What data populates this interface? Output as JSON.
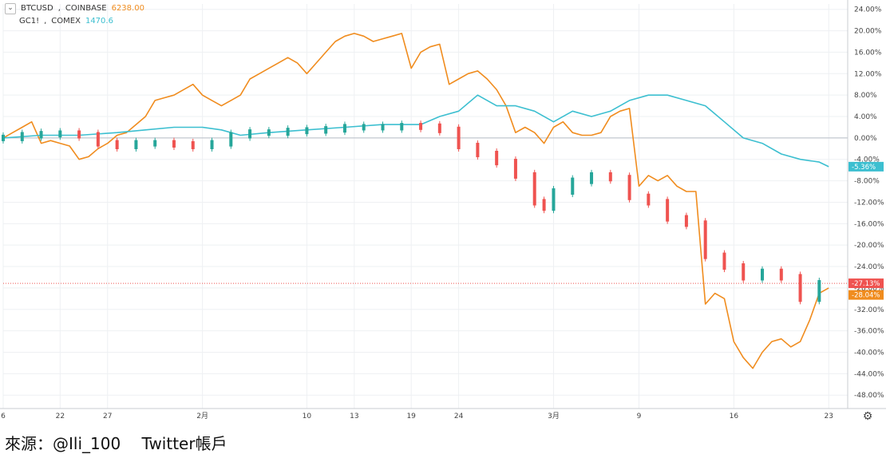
{
  "legend": [
    {
      "symbol": "BTCUSD",
      "exchange": "COINBASE",
      "value": "6238.00",
      "color": "#f08c1e"
    },
    {
      "symbol": "GC1!",
      "exchange": "COMEX",
      "value": "1470.6",
      "color": "#3cbfd0"
    }
  ],
  "badges": {
    "gold": "-5.36%",
    "candle": "-27.13%",
    "btc": "-28.04%"
  },
  "caption": "來源：@Ili_100 　Twitter帳戶",
  "icons": {
    "legend_toggle": "chevron-down-icon",
    "settings": "gear-icon"
  },
  "colors": {
    "btc": "#f08c1e",
    "gold": "#3cbfd0",
    "candle_up": "#26a69a",
    "candle_down": "#ef5350"
  },
  "chart_data": {
    "type": "line",
    "x_tick_labels": [
      "6",
      "22",
      "27",
      "2月",
      "10",
      "13",
      "19",
      "24",
      "3月",
      "9",
      "16",
      "23"
    ],
    "x_tick_positions": [
      0,
      6,
      11,
      21,
      32,
      37,
      43,
      48,
      58,
      67,
      77,
      87
    ],
    "y_ticks": [
      24,
      20,
      16,
      12,
      8,
      4,
      0,
      -4,
      -8,
      -12,
      -16,
      -20,
      -24,
      -28,
      -32,
      -36,
      -40,
      -44,
      -48
    ],
    "ylim": [
      -50.5,
      25
    ],
    "y_unit": "%",
    "grid": true,
    "series": [
      {
        "name": "BTCUSD",
        "kind": "line",
        "color": "#f08c1e",
        "points": [
          [
            0,
            0
          ],
          [
            1,
            1
          ],
          [
            2,
            2
          ],
          [
            3,
            3
          ],
          [
            4,
            -1
          ],
          [
            5,
            -0.5
          ],
          [
            6,
            -1
          ],
          [
            7,
            -1.5
          ],
          [
            8,
            -4
          ],
          [
            9,
            -3.5
          ],
          [
            10,
            -2
          ],
          [
            11,
            -1
          ],
          [
            12,
            0.5
          ],
          [
            13,
            1
          ],
          [
            14,
            2.5
          ],
          [
            15,
            4
          ],
          [
            16,
            7
          ],
          [
            17,
            7.5
          ],
          [
            18,
            8
          ],
          [
            19,
            9
          ],
          [
            20,
            10
          ],
          [
            21,
            8
          ],
          [
            22,
            7
          ],
          [
            23,
            6
          ],
          [
            24,
            7
          ],
          [
            25,
            8
          ],
          [
            26,
            11
          ],
          [
            27,
            12
          ],
          [
            28,
            13
          ],
          [
            29,
            14
          ],
          [
            30,
            15
          ],
          [
            31,
            14
          ],
          [
            32,
            12
          ],
          [
            33,
            14
          ],
          [
            34,
            16
          ],
          [
            35,
            18
          ],
          [
            36,
            19
          ],
          [
            37,
            19.5
          ],
          [
            38,
            19
          ],
          [
            39,
            18
          ],
          [
            40,
            18.5
          ],
          [
            41,
            19
          ],
          [
            42,
            19.5
          ],
          [
            43,
            13
          ],
          [
            44,
            16
          ],
          [
            45,
            17
          ],
          [
            46,
            17.5
          ],
          [
            47,
            10
          ],
          [
            48,
            11
          ],
          [
            49,
            12
          ],
          [
            50,
            12.5
          ],
          [
            51,
            11
          ],
          [
            52,
            9
          ],
          [
            53,
            6
          ],
          [
            54,
            1
          ],
          [
            55,
            2
          ],
          [
            56,
            1
          ],
          [
            57,
            -1
          ],
          [
            58,
            2
          ],
          [
            59,
            3
          ],
          [
            60,
            1
          ],
          [
            61,
            0.5
          ],
          [
            62,
            0.5
          ],
          [
            63,
            1
          ],
          [
            64,
            4
          ],
          [
            65,
            5
          ],
          [
            66,
            5.5
          ],
          [
            67,
            -9
          ],
          [
            68,
            -7
          ],
          [
            69,
            -8
          ],
          [
            70,
            -7
          ],
          [
            71,
            -9
          ],
          [
            72,
            -10
          ],
          [
            73,
            -10
          ],
          [
            74,
            -31
          ],
          [
            75,
            -29
          ],
          [
            76,
            -30
          ],
          [
            77,
            -38
          ],
          [
            78,
            -41
          ],
          [
            79,
            -43
          ],
          [
            80,
            -40
          ],
          [
            81,
            -38
          ],
          [
            82,
            -37.5
          ],
          [
            83,
            -39
          ],
          [
            84,
            -38
          ],
          [
            85,
            -34
          ],
          [
            86,
            -29
          ],
          [
            87,
            -28
          ]
        ]
      },
      {
        "name": "GC1!",
        "kind": "line",
        "color": "#3cbfd0",
        "points": [
          [
            0,
            0
          ],
          [
            4,
            0.5
          ],
          [
            8,
            0.5
          ],
          [
            12,
            1
          ],
          [
            15,
            1.5
          ],
          [
            18,
            2
          ],
          [
            21,
            2
          ],
          [
            23,
            1.5
          ],
          [
            25,
            0.5
          ],
          [
            28,
            1
          ],
          [
            32,
            1.5
          ],
          [
            36,
            2
          ],
          [
            40,
            2.5
          ],
          [
            44,
            2.5
          ],
          [
            46,
            4
          ],
          [
            48,
            5
          ],
          [
            50,
            8
          ],
          [
            52,
            6
          ],
          [
            54,
            6
          ],
          [
            56,
            5
          ],
          [
            58,
            3
          ],
          [
            60,
            5
          ],
          [
            62,
            4
          ],
          [
            64,
            5
          ],
          [
            66,
            7
          ],
          [
            68,
            8
          ],
          [
            70,
            8
          ],
          [
            72,
            7
          ],
          [
            74,
            6
          ],
          [
            76,
            3
          ],
          [
            78,
            0
          ],
          [
            80,
            -1
          ],
          [
            82,
            -3
          ],
          [
            84,
            -4
          ],
          [
            86,
            -4.5
          ],
          [
            87,
            -5.36
          ]
        ]
      },
      {
        "name": "candles",
        "kind": "candlestick",
        "color": "#26a69a",
        "points": [
          [
            0,
            0
          ],
          [
            2,
            0.5
          ],
          [
            4,
            0.7
          ],
          [
            6,
            0.8
          ],
          [
            8,
            0.5
          ],
          [
            10,
            -1
          ],
          [
            12,
            -1.5
          ],
          [
            14,
            -1
          ],
          [
            16,
            -1
          ],
          [
            18,
            -1.2
          ],
          [
            20,
            -1.5
          ],
          [
            22,
            -1
          ],
          [
            24,
            0.5
          ],
          [
            26,
            1
          ],
          [
            28,
            1
          ],
          [
            30,
            1.3
          ],
          [
            32,
            1.4
          ],
          [
            34,
            1.6
          ],
          [
            36,
            2
          ],
          [
            38,
            2
          ],
          [
            40,
            2
          ],
          [
            42,
            2.2
          ],
          [
            44,
            2.1
          ],
          [
            46,
            1.5
          ],
          [
            48,
            -1.5
          ],
          [
            50,
            -3
          ],
          [
            52,
            -4.5
          ],
          [
            54,
            -7
          ],
          [
            56,
            -12
          ],
          [
            57,
            -13
          ],
          [
            58,
            -10
          ],
          [
            60,
            -8
          ],
          [
            62,
            -7
          ],
          [
            64,
            -7.5
          ],
          [
            66,
            -11
          ],
          [
            68,
            -12
          ],
          [
            70,
            -15
          ],
          [
            72,
            -16
          ],
          [
            74,
            -22
          ],
          [
            76,
            -24
          ],
          [
            78,
            -26
          ],
          [
            80,
            -25
          ],
          [
            82,
            -26
          ],
          [
            84,
            -30
          ],
          [
            86,
            -27.13
          ]
        ]
      }
    ],
    "reference_line": {
      "value": -27.13,
      "style": "dotted",
      "color": "#ef5350"
    },
    "zero_line": 0
  }
}
